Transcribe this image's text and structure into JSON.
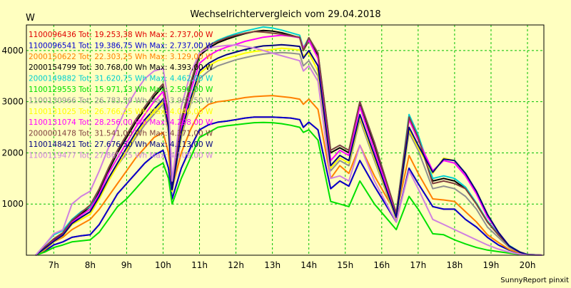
{
  "chart_data": {
    "type": "line",
    "title": "Wechselrichtervergleich vom 29.04.2018",
    "ylabel": "W",
    "footer": "SunnyReport pinxit",
    "ylim": [
      0,
      4500
    ],
    "xlim": [
      6.25,
      20.45
    ],
    "yticks": [
      1000,
      2000,
      3000,
      4000
    ],
    "xticks": [
      7,
      8,
      9,
      10,
      11,
      12,
      13,
      14,
      15,
      16,
      17,
      18,
      19,
      20
    ],
    "xtick_labels": [
      "7h",
      "8h",
      "9h",
      "10h",
      "11h",
      "12h",
      "13h",
      "14h",
      "15h",
      "16h",
      "17h",
      "18h",
      "19h",
      "20h"
    ],
    "grid": true,
    "legend_placement": "top-left",
    "x": [
      6.5,
      6.75,
      7.0,
      7.25,
      7.5,
      7.75,
      8.0,
      8.25,
      8.5,
      8.75,
      9.0,
      9.25,
      9.5,
      9.75,
      10.0,
      10.15,
      10.25,
      10.5,
      10.75,
      11.0,
      11.25,
      11.5,
      11.75,
      12.0,
      12.25,
      12.5,
      12.75,
      13.0,
      13.25,
      13.5,
      13.75,
      13.85,
      14.0,
      14.25,
      14.6,
      14.85,
      15.1,
      15.4,
      15.8,
      16.4,
      16.75,
      17.0,
      17.4,
      17.7,
      18.0,
      18.3,
      18.6,
      18.9,
      19.2,
      19.5,
      19.8,
      20.0,
      20.4
    ],
    "series": [
      {
        "name": "1100096436 Tot: 19.253,38 Wh Max: 2.737,00 W",
        "color": "#e00000",
        "values": [
          0,
          80,
          200,
          260,
          350,
          380,
          400,
          600,
          900,
          1200,
          1400,
          1600,
          1800,
          1950,
          2050,
          1700,
          1100,
          1700,
          2100,
          2450,
          2550,
          2600,
          2620,
          2650,
          2680,
          2700,
          2700,
          2700,
          2690,
          2680,
          2650,
          2500,
          2600,
          2450,
          1300,
          1450,
          1350,
          1850,
          1350,
          650,
          1700,
          1400,
          950,
          900,
          900,
          700,
          550,
          350,
          200,
          100,
          40,
          10,
          0
        ]
      },
      {
        "name": "1100096541 Tot: 19.386,75 Wh Max: 2.737,00 W",
        "color": "#0000d0",
        "values": [
          0,
          80,
          200,
          260,
          350,
          380,
          400,
          600,
          900,
          1200,
          1400,
          1600,
          1800,
          1950,
          2050,
          1700,
          1100,
          1700,
          2100,
          2450,
          2550,
          2600,
          2620,
          2650,
          2680,
          2700,
          2700,
          2700,
          2690,
          2680,
          2650,
          2500,
          2600,
          2450,
          1300,
          1450,
          1350,
          1850,
          1350,
          650,
          1700,
          1400,
          950,
          900,
          900,
          700,
          550,
          350,
          200,
          100,
          40,
          10,
          0
        ]
      },
      {
        "name": "2000150622 Tot: 22.303,25 Wh Max: 3.129,00 W",
        "color": "#ff8000",
        "values": [
          0,
          100,
          260,
          350,
          500,
          600,
          700,
          900,
          1150,
          1400,
          1650,
          1900,
          2100,
          2300,
          2400,
          2000,
          1300,
          2000,
          2450,
          2800,
          2950,
          3000,
          3020,
          3050,
          3080,
          3100,
          3110,
          3120,
          3100,
          3080,
          3050,
          2950,
          3050,
          2850,
          1500,
          1750,
          1600,
          2150,
          1550,
          800,
          1950,
          1600,
          1100,
          1080,
          1050,
          850,
          650,
          400,
          250,
          110,
          40,
          10,
          0
        ]
      },
      {
        "name": "2000154799 Tot: 30.768,00 Wh Max: 4.393,00 W",
        "color": "#000000",
        "values": [
          0,
          150,
          300,
          420,
          650,
          800,
          950,
          1250,
          1650,
          2000,
          2300,
          2600,
          2850,
          3100,
          3300,
          2700,
          1350,
          2600,
          3300,
          3900,
          4050,
          4150,
          4220,
          4280,
          4330,
          4370,
          4393,
          4380,
          4350,
          4300,
          4250,
          4000,
          4200,
          3900,
          2000,
          2100,
          2000,
          2950,
          2150,
          800,
          2700,
          2300,
          1450,
          1500,
          1450,
          1300,
          1000,
          650,
          400,
          180,
          60,
          15,
          0
        ]
      },
      {
        "name": "2000149882 Tot: 31.620,75 Wh Max: 4.462,00 W",
        "color": "#00d0d0",
        "values": [
          0,
          200,
          400,
          480,
          700,
          850,
          950,
          1300,
          1700,
          2050,
          2350,
          2650,
          2900,
          3150,
          3350,
          2750,
          1400,
          2650,
          3350,
          3950,
          4100,
          4200,
          4270,
          4330,
          4380,
          4420,
          4462,
          4440,
          4400,
          4350,
          4300,
          4050,
          4250,
          3950,
          2050,
          2150,
          2050,
          3000,
          2200,
          820,
          2750,
          2350,
          1500,
          1550,
          1500,
          1330,
          1020,
          670,
          420,
          190,
          60,
          15,
          0
        ]
      },
      {
        "name": "1100129553 Tot: 15.971,13 Wh Max: 2.596,00 W",
        "color": "#00e000",
        "values": [
          0,
          60,
          150,
          200,
          260,
          280,
          300,
          450,
          700,
          950,
          1100,
          1300,
          1500,
          1700,
          1800,
          1500,
          1000,
          1500,
          1900,
          2300,
          2400,
          2500,
          2530,
          2550,
          2570,
          2590,
          2596,
          2590,
          2570,
          2540,
          2500,
          2400,
          2450,
          2250,
          1050,
          1000,
          950,
          1450,
          1000,
          500,
          1150,
          900,
          420,
          400,
          300,
          220,
          150,
          100,
          70,
          40,
          15,
          5,
          0
        ]
      },
      {
        "name": "1100130966 Tot: 26.783,50 Wh Max: 3.962,50 W",
        "color": "#909090",
        "values": [
          0,
          120,
          260,
          380,
          600,
          700,
          800,
          1100,
          1450,
          1750,
          2000,
          2300,
          2550,
          2750,
          2950,
          2400,
          1250,
          2300,
          2950,
          3450,
          3600,
          3700,
          3760,
          3820,
          3860,
          3900,
          3930,
          3950,
          3960,
          3950,
          3930,
          3700,
          3800,
          3500,
          1650,
          1850,
          1750,
          2650,
          1850,
          700,
          2400,
          2050,
          1300,
          1350,
          1300,
          1150,
          900,
          550,
          350,
          150,
          50,
          10,
          0
        ]
      },
      {
        "name": "1100131025 Tot: 26.766,25 Wh Max: 4.046,00 W",
        "color": "#ffff00",
        "values": [
          0,
          120,
          260,
          380,
          600,
          700,
          800,
          1100,
          1450,
          1750,
          2050,
          2350,
          2600,
          2800,
          3000,
          2450,
          1250,
          2350,
          3000,
          3550,
          3700,
          3800,
          3850,
          3900,
          3950,
          3980,
          4000,
          4020,
          4046,
          4030,
          4010,
          3900,
          3950,
          3600,
          1700,
          1900,
          1800,
          2700,
          1900,
          720,
          2450,
          2100,
          1600,
          1900,
          1850,
          1600,
          1250,
          800,
          450,
          180,
          50,
          10,
          0
        ]
      },
      {
        "name": "1100131074 Tot: 28.256,00 Wh Max: 4.298,00 W",
        "color": "#ff00ff",
        "values": [
          0,
          140,
          280,
          400,
          640,
          780,
          900,
          1200,
          1600,
          1900,
          2200,
          2500,
          2750,
          3000,
          3200,
          2600,
          1300,
          2500,
          3200,
          3750,
          3900,
          4000,
          4070,
          4120,
          4180,
          4220,
          4260,
          4280,
          4298,
          4280,
          4250,
          4050,
          4200,
          3850,
          1850,
          2050,
          1950,
          2900,
          2050,
          780,
          2650,
          2250,
          1650,
          1850,
          1800,
          1550,
          1200,
          750,
          450,
          180,
          55,
          12,
          0
        ]
      },
      {
        "name": "2000001478 Tot: 31.541,00 Wh Max: 4.371,00 W",
        "color": "#804040",
        "values": [
          0,
          160,
          320,
          440,
          680,
          830,
          980,
          1300,
          1700,
          2050,
          2350,
          2650,
          2900,
          3150,
          3350,
          2750,
          1400,
          2650,
          3350,
          3950,
          4100,
          4180,
          4250,
          4300,
          4340,
          4371,
          4360,
          4340,
          4320,
          4290,
          4260,
          4000,
          4250,
          3950,
          2050,
          2150,
          2050,
          3000,
          2200,
          820,
          2700,
          2300,
          1400,
          1450,
          1400,
          1300,
          1000,
          650,
          400,
          180,
          60,
          15,
          0
        ]
      },
      {
        "name": "1100148421 Tot: 27.676,50 Wh Max: 4.113,00 W",
        "color": "#000080",
        "values": [
          0,
          130,
          270,
          390,
          620,
          740,
          850,
          1150,
          1500,
          1800,
          2100,
          2400,
          2650,
          2850,
          3050,
          2500,
          1280,
          2400,
          3050,
          3600,
          3750,
          3850,
          3920,
          3970,
          4020,
          4060,
          4090,
          4100,
          4113,
          4100,
          4080,
          3850,
          4000,
          3700,
          1750,
          1950,
          1850,
          2750,
          1950,
          740,
          2500,
          2150,
          1620,
          1880,
          1850,
          1600,
          1250,
          800,
          450,
          180,
          55,
          12,
          0
        ]
      },
      {
        "name": "1100119477 Tot: 27.865,75 Wh Max: 4.109,00 W",
        "color": "#d080e0",
        "values": [
          0,
          200,
          420,
          500,
          1000,
          1150,
          1250,
          1650,
          2100,
          2500,
          2900,
          3200,
          3450,
          3600,
          3650,
          3000,
          1450,
          2900,
          3550,
          3950,
          4050,
          4080,
          4100,
          4109,
          4080,
          4050,
          4000,
          3950,
          3900,
          3850,
          3800,
          3600,
          3700,
          3400,
          1500,
          1550,
          1450,
          2150,
          1450,
          650,
          1650,
          1300,
          700,
          600,
          500,
          400,
          300,
          200,
          120,
          60,
          20,
          5,
          0
        ]
      }
    ]
  }
}
